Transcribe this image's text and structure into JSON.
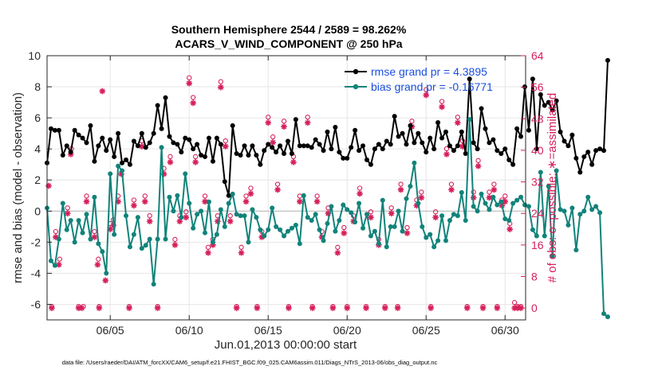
{
  "chart_data": {
    "type": "line",
    "title_line1": "Southern Hemisphere 2544 / 2589 = 98.262%",
    "title_line2": "ACARS_V_WIND_COMPONENT @ 250 hPa",
    "xlabel": "Jun.01,2013 00:00:00 start",
    "ylabel": "rmse and bias (model - observation)",
    "ylabel_right": "# of obs: o=possible; ∗=assimilated",
    "footer": "data file: /Users/raeder/DAI/ATM_forcXX/CAM6_setup/f.e21.FHIST_BGC.f09_025.CAM6assim.011/Diags_NTrS_2013-06/obs_diag_output.nc",
    "xlim": [
      1.0,
      31.3
    ],
    "ylim": [
      -7,
      10
    ],
    "ylim_right": [
      -3,
      64
    ],
    "x_ticks": [
      5,
      10,
      15,
      20,
      25,
      30
    ],
    "x_tick_labels": [
      "06/05",
      "06/10",
      "06/15",
      "06/20",
      "06/25",
      "06/30"
    ],
    "y_ticks": [
      -6,
      -4,
      -2,
      0,
      2,
      4,
      6,
      8,
      10
    ],
    "y_tick_labels": [
      "-6",
      "-4",
      "-2",
      "0",
      "2",
      "4",
      "6",
      "8",
      "10"
    ],
    "y_ticks_right": [
      0,
      8,
      16,
      24,
      32,
      40,
      48,
      56,
      64
    ],
    "y_tick_labels_right": [
      "0",
      "8",
      "16",
      "24",
      "32",
      "40",
      "48",
      "56",
      "64"
    ],
    "x_start": 1.0,
    "x_step": 0.25,
    "series": [
      {
        "name": "rmse",
        "legend": "rmse grand pr = 4.3895",
        "color": "#000000",
        "values": [
          3.1,
          5.3,
          5.2,
          5.2,
          3.6,
          4.2,
          3.8,
          5.2,
          4.9,
          4.7,
          4.4,
          5.5,
          3.2,
          4.2,
          4.7,
          3.9,
          4.6,
          3.5,
          5.0,
          3.1,
          3.3,
          3.0,
          4.5,
          4.2,
          5.0,
          4.1,
          4.4,
          5.0,
          6.8,
          5.3,
          7.3,
          4.8,
          4.4,
          4.3,
          3.8,
          4.7,
          4.6,
          4.0,
          4.3,
          3.6,
          3.5,
          4.7,
          3.2,
          4.7,
          4.3,
          1.9,
          1.0,
          5.5,
          3.7,
          3.6,
          4.2,
          3.6,
          4.2,
          3.6,
          3.0,
          3.9,
          4.3,
          4.1,
          3.8,
          4.2,
          3.7,
          4.5,
          3.7,
          5.9,
          4.2,
          4.2,
          4.2,
          4.1,
          4.6,
          4.3,
          3.9,
          5.1,
          4.0,
          5.4,
          3.8,
          3.4,
          3.4,
          4.1,
          5.2,
          3.9,
          4.2,
          3.3,
          3.0,
          4.0,
          4.3,
          4.0,
          4.5,
          4.3,
          6.1,
          4.8,
          5.0,
          4.3,
          5.5,
          4.4,
          5.0,
          4.4,
          3.8,
          4.7,
          4.0,
          5.7,
          4.7,
          5.1,
          4.2,
          3.9,
          4.2,
          5.1,
          3.7,
          8.5,
          4.4,
          4.0,
          6.6,
          5.3,
          4.4,
          4.6,
          3.9,
          3.7,
          4.0,
          3.3,
          3.0,
          5.3,
          4.8,
          8.0,
          5.2,
          8.5,
          4.0,
          7.5,
          6.8,
          7.0,
          6.5,
          7.1,
          5.1,
          4.5,
          4.2,
          4.9,
          3.4,
          2.5,
          3.5,
          3.8,
          3.0,
          3.9,
          4.0,
          3.9,
          9.7
        ]
      },
      {
        "name": "bias",
        "legend": "bias grand pr = -0.16771",
        "color": "#11837a",
        "values": [
          0.2,
          -3.2,
          -3.5,
          -1.8,
          0.5,
          -1.2,
          -0.6,
          -2.0,
          -0.6,
          -1.4,
          -0.2,
          -1.8,
          0.9,
          -2.1,
          -2.6,
          -4.0,
          2.4,
          -1.5,
          2.9,
          2.6,
          -0.3,
          -2.3,
          -1.5,
          -0.4,
          -2.4,
          -2.2,
          -1.8,
          -4.7,
          -1.8,
          4.1,
          -1.8,
          0.9,
          0.0,
          1.0,
          -0.4,
          2.4,
          0.5,
          -1.1,
          -0.2,
          0.0,
          -1.4,
          0.6,
          -2.0,
          -1.5,
          0.1,
          -1.0,
          0.5,
          1.1,
          -0.2,
          -0.3,
          -0.3,
          -2.0,
          0.1,
          -0.4,
          -1.2,
          -1.6,
          -1.2,
          0.2,
          -1.0,
          -1.2,
          -1.6,
          -1.3,
          -1.1,
          -0.9,
          -2.1,
          1.0,
          -0.4,
          -0.6,
          -0.2,
          -1.2,
          -1.9,
          -0.8,
          0.3,
          -1.3,
          -0.6,
          0.4,
          0.1,
          -0.1,
          -0.7,
          0.5,
          -1.1,
          -0.2,
          -1.6,
          -1.3,
          -2.1,
          0.7,
          -2.3,
          -1.0,
          -1.0,
          0.0,
          -1.3,
          0.8,
          1.6,
          3.1,
          0.5,
          -1.0,
          -1.7,
          -1.5,
          -2.3,
          -1.9,
          -0.3,
          -1.9,
          -0.6,
          -0.2,
          -0.3,
          1.2,
          -0.6,
          5.9,
          0.3,
          0.0,
          1.1,
          0.5,
          0.1,
          0.9,
          0.4,
          0.6,
          -0.5,
          -0.6,
          0.5,
          0.7,
          0.9,
          0.4,
          0.3,
          -1.2,
          -1.6,
          2.5,
          -1.6,
          1.6,
          -2.9,
          2.6,
          0.1,
          0.0,
          -0.9,
          0.2,
          -2.5,
          -0.2,
          0.0,
          0.9,
          0.1,
          0.3,
          -0.1,
          -6.6,
          -6.8
        ]
      }
    ],
    "obs_possible": {
      "marker": "o",
      "color": "#d6205a",
      "points": [
        [
          1.3,
          0
        ],
        [
          1.55,
          19
        ],
        [
          1.8,
          12
        ],
        [
          2.3,
          25
        ],
        [
          2.55,
          40
        ],
        [
          3.0,
          0
        ],
        [
          3.3,
          0
        ],
        [
          3.5,
          28
        ],
        [
          4.0,
          19
        ],
        [
          4.25,
          12
        ],
        [
          4.3,
          0
        ],
        [
          5.0,
          21
        ],
        [
          5.2,
          22
        ],
        [
          5.5,
          28
        ],
        [
          6.2,
          0
        ],
        [
          6.5,
          27
        ],
        [
          7.0,
          42
        ],
        [
          7.2,
          28
        ],
        [
          7.5,
          23
        ],
        [
          8.0,
          0
        ],
        [
          8.4,
          35
        ],
        [
          8.8,
          38
        ],
        [
          9.1,
          17
        ],
        [
          9.4,
          23
        ],
        [
          9.8,
          24
        ],
        [
          10.0,
          58
        ],
        [
          10.25,
          53
        ],
        [
          10.4,
          38
        ],
        [
          11.0,
          28
        ],
        [
          11.2,
          15
        ],
        [
          11.5,
          17
        ],
        [
          11.8,
          23
        ],
        [
          12.0,
          57
        ],
        [
          12.3,
          42
        ],
        [
          12.6,
          23
        ],
        [
          13.0,
          0
        ],
        [
          13.3,
          15
        ],
        [
          13.6,
          28
        ],
        [
          13.9,
          30
        ],
        [
          14.3,
          0
        ],
        [
          14.6,
          19
        ],
        [
          15.0,
          48
        ],
        [
          15.3,
          43
        ],
        [
          15.6,
          31
        ],
        [
          16.0,
          47
        ],
        [
          16.3,
          0
        ],
        [
          16.6,
          38
        ],
        [
          17.0,
          28
        ],
        [
          17.5,
          48
        ],
        [
          17.8,
          0
        ],
        [
          18.1,
          28
        ],
        [
          18.4,
          19
        ],
        [
          18.8,
          25
        ],
        [
          19.1,
          0
        ],
        [
          19.4,
          15
        ],
        [
          19.8,
          20
        ],
        [
          20.0,
          0
        ],
        [
          20.4,
          23
        ],
        [
          20.8,
          30
        ],
        [
          21.2,
          0
        ],
        [
          21.5,
          24
        ],
        [
          22.0,
          17
        ],
        [
          22.4,
          0
        ],
        [
          22.8,
          25
        ],
        [
          23.2,
          0
        ],
        [
          23.4,
          31
        ],
        [
          23.8,
          20
        ],
        [
          24.1,
          47
        ],
        [
          24.4,
          27
        ],
        [
          24.7,
          29
        ],
        [
          25.0,
          55
        ],
        [
          25.3,
          0
        ],
        [
          25.6,
          24
        ],
        [
          26.0,
          52
        ],
        [
          26.3,
          40
        ],
        [
          26.6,
          31
        ],
        [
          27.0,
          48
        ],
        [
          27.3,
          42
        ],
        [
          27.6,
          0
        ],
        [
          28.0,
          29
        ],
        [
          28.3,
          37
        ],
        [
          28.6,
          0
        ],
        [
          29.0,
          29
        ],
        [
          29.3,
          31
        ],
        [
          29.5,
          0
        ],
        [
          29.8,
          27
        ],
        [
          30.0,
          28
        ],
        [
          30.3,
          21
        ],
        [
          30.6,
          1
        ],
        [
          30.8,
          0
        ],
        [
          31.0,
          0
        ]
      ]
    },
    "obs_assimilated": {
      "marker": "*",
      "color": "#d6205a",
      "points": [
        [
          1.1,
          31
        ],
        [
          1.3,
          0
        ],
        [
          1.55,
          18
        ],
        [
          1.75,
          11
        ],
        [
          2.3,
          24
        ],
        [
          2.5,
          39
        ],
        [
          3.0,
          0
        ],
        [
          3.2,
          0
        ],
        [
          3.5,
          27
        ],
        [
          4.0,
          18
        ],
        [
          4.2,
          11
        ],
        [
          4.3,
          0
        ],
        [
          4.5,
          55
        ],
        [
          4.7,
          7
        ],
        [
          5.0,
          20
        ],
        [
          5.2,
          21
        ],
        [
          5.5,
          27
        ],
        [
          5.7,
          34
        ],
        [
          6.2,
          0
        ],
        [
          6.5,
          26
        ],
        [
          7.0,
          41
        ],
        [
          7.2,
          27
        ],
        [
          7.5,
          22
        ],
        [
          8.0,
          0
        ],
        [
          8.4,
          34
        ],
        [
          8.8,
          37
        ],
        [
          9.1,
          16
        ],
        [
          9.4,
          22
        ],
        [
          9.8,
          23
        ],
        [
          10.0,
          57
        ],
        [
          10.25,
          52
        ],
        [
          10.4,
          37
        ],
        [
          11.0,
          27
        ],
        [
          11.2,
          14
        ],
        [
          11.5,
          16
        ],
        [
          11.8,
          22
        ],
        [
          12.0,
          56
        ],
        [
          12.3,
          41
        ],
        [
          12.6,
          22
        ],
        [
          13.0,
          0
        ],
        [
          13.3,
          14
        ],
        [
          13.6,
          27
        ],
        [
          13.9,
          29
        ],
        [
          14.3,
          0
        ],
        [
          14.6,
          18
        ],
        [
          15.0,
          47
        ],
        [
          15.3,
          42
        ],
        [
          15.6,
          30
        ],
        [
          16.0,
          46
        ],
        [
          16.3,
          0
        ],
        [
          16.6,
          37
        ],
        [
          17.0,
          27
        ],
        [
          17.5,
          47
        ],
        [
          17.8,
          0
        ],
        [
          18.1,
          27
        ],
        [
          18.4,
          18
        ],
        [
          18.8,
          24
        ],
        [
          19.1,
          0
        ],
        [
          19.4,
          14
        ],
        [
          19.8,
          19
        ],
        [
          20.0,
          0
        ],
        [
          20.4,
          22
        ],
        [
          20.8,
          29
        ],
        [
          21.2,
          0
        ],
        [
          21.5,
          23
        ],
        [
          22.0,
          16
        ],
        [
          22.4,
          0
        ],
        [
          22.8,
          24
        ],
        [
          23.2,
          0
        ],
        [
          23.4,
          30
        ],
        [
          23.8,
          19
        ],
        [
          24.1,
          46
        ],
        [
          24.4,
          26
        ],
        [
          24.7,
          28
        ],
        [
          25.0,
          54
        ],
        [
          25.3,
          0
        ],
        [
          25.6,
          23
        ],
        [
          26.0,
          51
        ],
        [
          26.3,
          39
        ],
        [
          26.6,
          30
        ],
        [
          27.0,
          47
        ],
        [
          27.3,
          41
        ],
        [
          27.6,
          0
        ],
        [
          28.0,
          28
        ],
        [
          28.3,
          36
        ],
        [
          28.6,
          0
        ],
        [
          29.0,
          28
        ],
        [
          29.3,
          30
        ],
        [
          29.5,
          0
        ],
        [
          29.8,
          26
        ],
        [
          30.0,
          27
        ],
        [
          30.3,
          20
        ],
        [
          30.6,
          0
        ],
        [
          30.8,
          0
        ],
        [
          31.0,
          0
        ]
      ]
    }
  }
}
